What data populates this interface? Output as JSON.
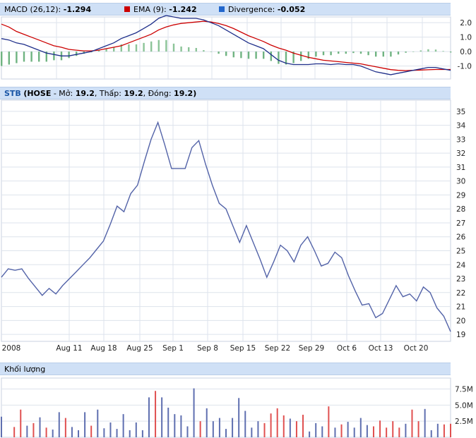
{
  "macd_header": {
    "macd_label": "MACD (26,12):",
    "macd_value": "-1.294",
    "ema_label": "EMA (9):",
    "ema_value": "-1.242",
    "div_label": "Divergence:",
    "div_value": "-0.052",
    "colors": {
      "macd": "#1f2f8a",
      "ema": "#cc0000",
      "divergence": "#2266cc"
    }
  },
  "price_header": {
    "ticker": "STB",
    "exchange": "(HOSE",
    "open_label": " - Mở: ",
    "open": "19.2",
    "low_label": ", Thấp: ",
    "low": "19.2",
    "close_label": ", Đóng: ",
    "close": "19.2",
    "suffix": ")"
  },
  "volume_header": {
    "title": "Khối lượng"
  },
  "x_axis": {
    "labels": [
      "2008",
      "Aug 11",
      "Aug 18",
      "Aug 25",
      "Sep 1",
      "Sep 8",
      "Sep 15",
      "Sep 22",
      "Sep 29",
      "Oct 6",
      "Oct 13",
      "Oct 20"
    ]
  },
  "chart_data": [
    {
      "type": "line",
      "name": "MACD",
      "ylim": [
        -1.9,
        2.4
      ],
      "yticks": [
        "2.0",
        "1.0",
        "0.0",
        "-1.0"
      ],
      "series": [
        {
          "name": "MACD (26,12)",
          "color": "#1f2f8a",
          "values": [
            0.9,
            0.8,
            0.6,
            0.5,
            0.3,
            0.1,
            -0.1,
            -0.2,
            -0.3,
            -0.3,
            -0.2,
            -0.1,
            0.0,
            0.2,
            0.4,
            0.6,
            0.9,
            1.1,
            1.3,
            1.6,
            1.9,
            2.3,
            2.5,
            2.4,
            2.3,
            2.3,
            2.3,
            2.2,
            2.0,
            1.8,
            1.5,
            1.2,
            0.9,
            0.6,
            0.4,
            0.2,
            -0.2,
            -0.6,
            -0.8,
            -0.9,
            -0.9,
            -0.9,
            -0.85,
            -0.85,
            -0.9,
            -0.85,
            -0.9,
            -0.9,
            -1.0,
            -1.2,
            -1.4,
            -1.5,
            -1.6,
            -1.5,
            -1.4,
            -1.3,
            -1.2,
            -1.1,
            -1.1,
            -1.2,
            -1.3
          ]
        },
        {
          "name": "EMA (9)",
          "color": "#cc0000",
          "values": [
            1.9,
            1.7,
            1.4,
            1.2,
            1.0,
            0.8,
            0.6,
            0.4,
            0.3,
            0.15,
            0.1,
            0.05,
            0.05,
            0.1,
            0.2,
            0.3,
            0.4,
            0.6,
            0.8,
            1.0,
            1.2,
            1.5,
            1.7,
            1.85,
            1.95,
            2.0,
            2.05,
            2.1,
            2.05,
            1.95,
            1.8,
            1.6,
            1.35,
            1.1,
            0.9,
            0.7,
            0.45,
            0.25,
            0.1,
            -0.1,
            -0.25,
            -0.4,
            -0.5,
            -0.6,
            -0.65,
            -0.7,
            -0.75,
            -0.8,
            -0.85,
            -0.95,
            -1.05,
            -1.15,
            -1.25,
            -1.3,
            -1.32,
            -1.3,
            -1.28,
            -1.26,
            -1.24,
            -1.24,
            -1.24
          ]
        },
        {
          "name": "Divergence",
          "type": "bar",
          "values": [
            -1.0,
            -0.9,
            -0.8,
            -0.7,
            -0.7,
            -0.7,
            -0.7,
            -0.6,
            -0.6,
            -0.45,
            -0.3,
            -0.15,
            -0.05,
            0.1,
            0.2,
            0.3,
            0.5,
            0.5,
            0.5,
            0.6,
            0.7,
            0.8,
            0.8,
            0.55,
            0.35,
            0.3,
            0.25,
            0.1,
            0.0,
            -0.15,
            -0.3,
            -0.4,
            -0.45,
            -0.5,
            -0.5,
            -0.5,
            -0.65,
            -0.85,
            -0.9,
            -0.8,
            -0.65,
            -0.5,
            -0.35,
            -0.25,
            -0.25,
            -0.15,
            -0.15,
            -0.1,
            -0.15,
            -0.25,
            -0.35,
            -0.35,
            -0.35,
            -0.2,
            -0.08,
            0.0,
            0.08,
            0.16,
            0.14,
            0.04,
            -0.06
          ]
        }
      ]
    },
    {
      "type": "line",
      "name": "Price",
      "ylim": [
        18.5,
        35.8
      ],
      "yticks": [
        35,
        34,
        33,
        32,
        31,
        30,
        29,
        28,
        27,
        26,
        25,
        24,
        23,
        22,
        21,
        20,
        19
      ],
      "x_labels": [
        "2008",
        "Aug 11",
        "Aug 18",
        "Aug 25",
        "Sep 1",
        "Sep 8",
        "Sep 15",
        "Sep 22",
        "Sep 29",
        "Oct 6",
        "Oct 13",
        "Oct 20"
      ],
      "series": [
        {
          "name": "STB",
          "color": "#5363a8",
          "values": [
            23.1,
            23.7,
            23.6,
            23.7,
            23.0,
            22.4,
            21.8,
            22.3,
            21.9,
            22.5,
            23.0,
            23.5,
            24.0,
            24.5,
            25.1,
            25.7,
            26.9,
            28.2,
            27.8,
            29.1,
            29.7,
            31.4,
            33.0,
            34.2,
            32.6,
            30.9,
            30.9,
            30.9,
            32.4,
            32.9,
            31.2,
            29.7,
            28.4,
            28.0,
            26.8,
            25.6,
            26.8,
            25.6,
            24.4,
            23.1,
            24.2,
            25.4,
            25.0,
            24.2,
            25.4,
            26.0,
            25.0,
            23.9,
            24.1,
            24.9,
            24.5,
            23.2,
            22.1,
            21.1,
            21.2,
            20.2,
            20.5,
            21.5,
            22.5,
            21.7,
            21.9,
            21.4,
            22.4,
            22.0,
            20.9,
            20.3,
            19.2
          ]
        }
      ]
    },
    {
      "type": "bar",
      "name": "Volume",
      "ylim": [
        0,
        9.2
      ],
      "yticks": [
        "7.5M",
        "5.0M",
        "2.5M"
      ],
      "series": [
        {
          "name": "Khối lượng",
          "values": [
            3.2,
            0.0,
            1.6,
            4.3,
            1.8,
            2.2,
            3.1,
            1.5,
            1.2,
            3.9,
            3.0,
            1.6,
            1.1,
            3.9,
            1.8,
            4.3,
            1.4,
            2.3,
            1.3,
            3.6,
            1.1,
            2.3,
            1.1,
            6.2,
            7.2,
            6.2,
            4.6,
            3.6,
            3.4,
            1.7,
            7.6,
            2.5,
            4.5,
            2.5,
            3.0,
            1.3,
            3.0,
            6.1,
            4.1,
            1.5,
            2.5,
            2.2,
            3.7,
            4.5,
            3.4,
            2.9,
            2.5,
            3.5,
            0.9,
            2.2,
            1.7,
            4.8,
            1.5,
            2.0,
            2.4,
            1.5,
            3.0,
            1.9,
            1.7,
            2.6,
            1.5,
            2.5,
            1.5,
            2.1,
            4.3,
            2.5,
            4.4,
            1.1,
            2.1,
            2.0,
            2.1
          ],
          "up": [
            0,
            0,
            1,
            1,
            0,
            1,
            0,
            1,
            0,
            0,
            1,
            0,
            0,
            0,
            1,
            0,
            0,
            0,
            0,
            0,
            0,
            0,
            0,
            0,
            1,
            0,
            0,
            0,
            0,
            0,
            0,
            1,
            0,
            0,
            0,
            0,
            0,
            0,
            0,
            0,
            0,
            1,
            1,
            1,
            1,
            0,
            1,
            1,
            0,
            0,
            0,
            1,
            0,
            1,
            0,
            0,
            0,
            0,
            1,
            1,
            1,
            1,
            1,
            0,
            1,
            1,
            0,
            0,
            0,
            1,
            1
          ]
        }
      ]
    }
  ]
}
